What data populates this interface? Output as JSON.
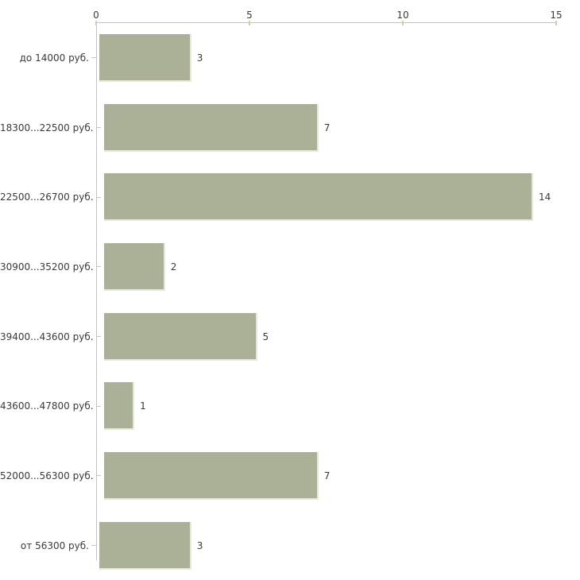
{
  "chart_data": {
    "type": "bar",
    "orientation": "horizontal",
    "title": "",
    "xlabel": "",
    "ylabel": "",
    "categories": [
      "до 14000 руб.",
      "18300...22500 руб.",
      "22500...26700 руб.",
      "30900...35200 руб.",
      "39400...43600 руб.",
      "43600...47800 руб.",
      "52000...56300 руб.",
      "от 56300 руб."
    ],
    "values": [
      3,
      7,
      14,
      2,
      5,
      1,
      7,
      3
    ],
    "value_labels": [
      "3",
      "7",
      "14",
      "2",
      "5",
      "1",
      "7",
      "3"
    ],
    "xlim": [
      0,
      15
    ],
    "x_ticks": [
      0,
      5,
      10,
      15
    ],
    "x_tick_labels": [
      "0",
      "5",
      "10",
      "15"
    ],
    "grid": false,
    "legend": false,
    "colors": {
      "bar_fill": "#abb196",
      "bar_edge": "#e6e8da",
      "axis_line": "#c3c3c3",
      "axis_tick": "#cdd0a2",
      "category_tick": "#c9c2b8",
      "text": "#3a3a3a",
      "background": "#ffffff"
    }
  }
}
